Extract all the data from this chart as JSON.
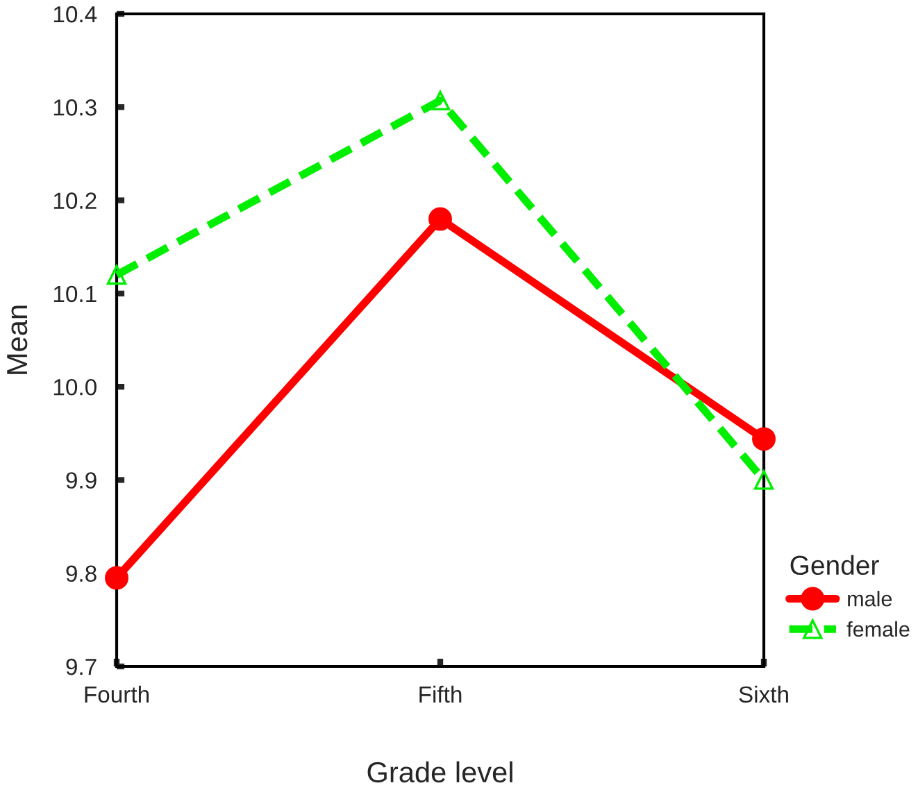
{
  "chart_data": {
    "type": "line",
    "xlabel": "Grade level",
    "ylabel": "Mean",
    "legend_title": "Gender",
    "legend": "right",
    "categories": [
      "Fourth",
      "Fifth",
      "Sixth"
    ],
    "series": [
      {
        "name": "male",
        "color": "#ff0000",
        "values": [
          9.795,
          10.18,
          9.944
        ],
        "marker": "circle",
        "line_style": "solid"
      },
      {
        "name": "female",
        "color": "#00ee00",
        "values": [
          10.12,
          10.307,
          9.9
        ],
        "marker": "triangle",
        "line_style": "dashed"
      }
    ],
    "ylim": [
      9.7,
      10.4
    ],
    "yticks": [
      {
        "value": 9.7,
        "label": "9.7"
      },
      {
        "value": 9.8,
        "label": "9.8"
      },
      {
        "value": 9.9,
        "label": "9.9"
      },
      {
        "value": 10.0,
        "label": "10.0"
      },
      {
        "value": 10.1,
        "label": "10.1"
      },
      {
        "value": 10.2,
        "label": "10.2"
      },
      {
        "value": 10.3,
        "label": "10.3"
      },
      {
        "value": 10.4,
        "label": "10.4"
      }
    ],
    "grid": false
  }
}
